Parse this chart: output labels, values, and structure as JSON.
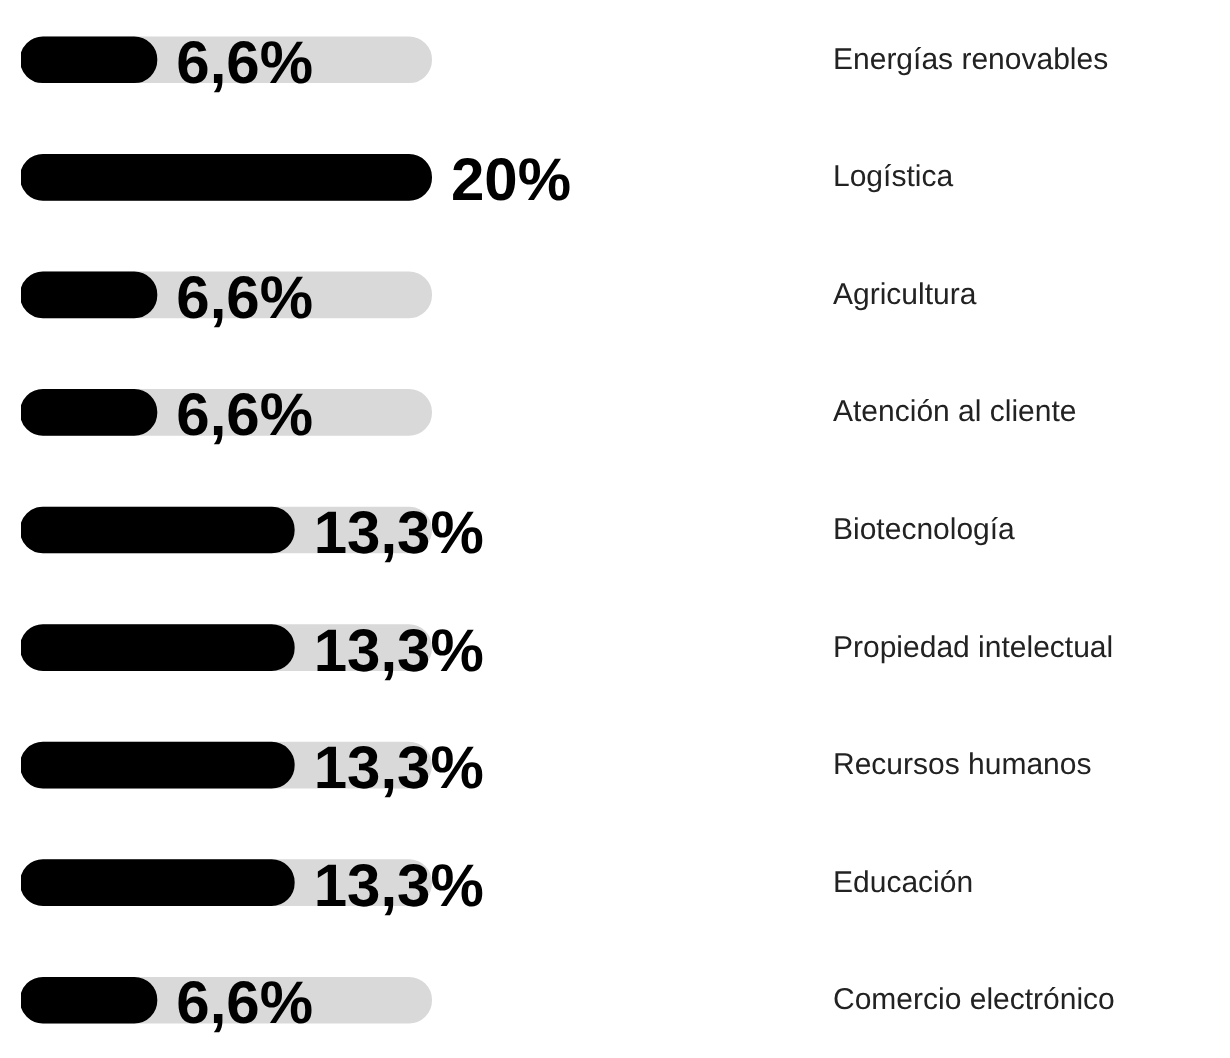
{
  "chart_data": {
    "type": "bar",
    "orientation": "horizontal",
    "categories": [
      "Energías renovables",
      "Logística",
      "Agricultura",
      "Atención al cliente",
      "Biotecnología",
      "Propiedad intelectual",
      "Recursos humanos",
      "Educación",
      "Comercio electrónico"
    ],
    "values": [
      6.6,
      20,
      6.6,
      6.6,
      13.3,
      13.3,
      13.3,
      13.3,
      6.6
    ],
    "value_labels": [
      "6,6%",
      "20%",
      "6,6%",
      "6,6%",
      "13,3%",
      "13,3%",
      "13,3%",
      "13,3%",
      "6,6%"
    ],
    "color": "#000000",
    "xlim": [
      0,
      20
    ],
    "grid": false
  }
}
